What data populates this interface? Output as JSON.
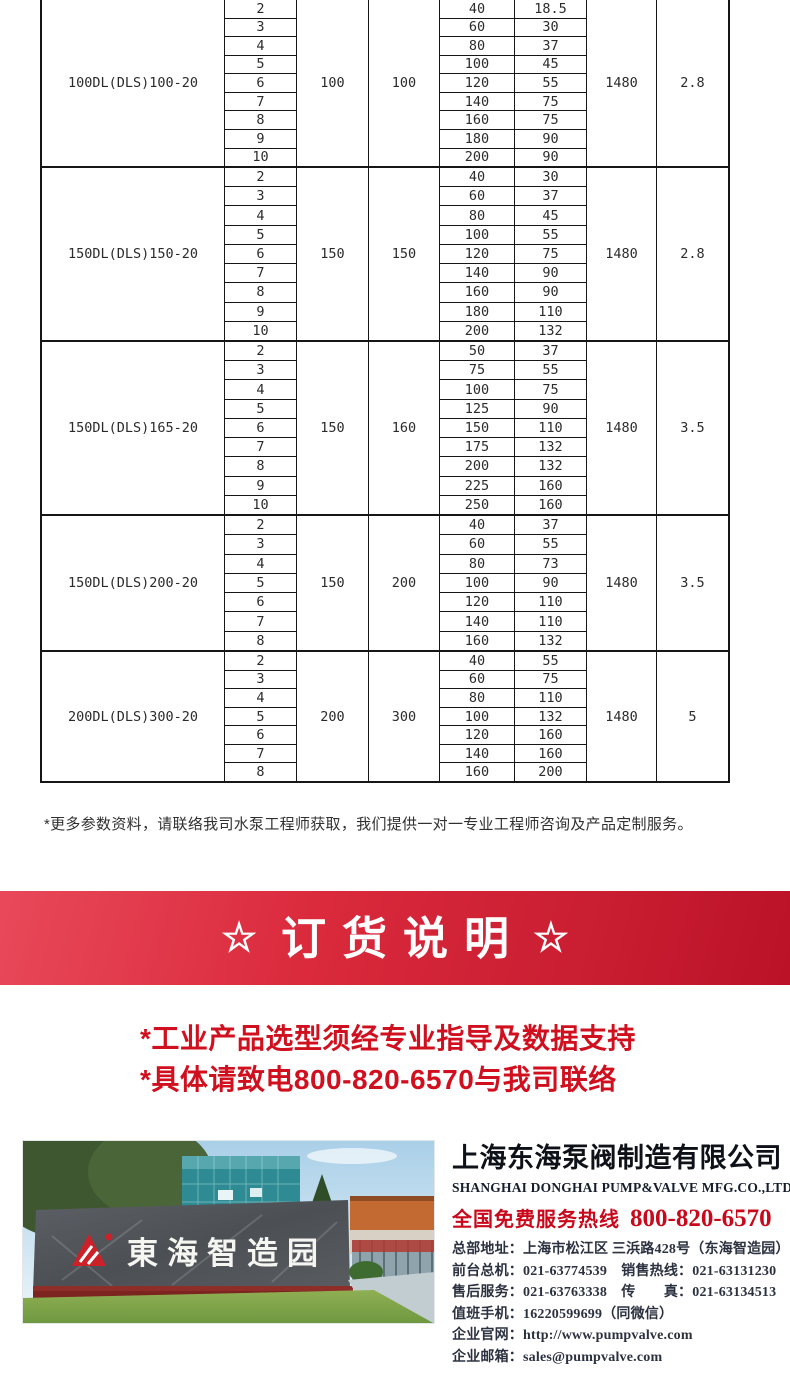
{
  "table": {
    "blocks": [
      {
        "model": "100DL(DLS)100-20",
        "inlet": "100",
        "outlet": "100",
        "speed": "1480",
        "last_value": "2.8",
        "rows": [
          {
            "stage": "2",
            "flow": "40",
            "head": "18.5"
          },
          {
            "stage": "3",
            "flow": "60",
            "head": "30"
          },
          {
            "stage": "4",
            "flow": "80",
            "head": "37"
          },
          {
            "stage": "5",
            "flow": "100",
            "head": "45"
          },
          {
            "stage": "6",
            "flow": "120",
            "head": "55"
          },
          {
            "stage": "7",
            "flow": "140",
            "head": "75"
          },
          {
            "stage": "8",
            "flow": "160",
            "head": "75"
          },
          {
            "stage": "9",
            "flow": "180",
            "head": "90"
          },
          {
            "stage": "10",
            "flow": "200",
            "head": "90"
          }
        ]
      },
      {
        "model": "150DL(DLS)150-20",
        "inlet": "150",
        "outlet": "150",
        "speed": "1480",
        "last_value": "2.8",
        "rows": [
          {
            "stage": "2",
            "flow": "40",
            "head": "30"
          },
          {
            "stage": "3",
            "flow": "60",
            "head": "37"
          },
          {
            "stage": "4",
            "flow": "80",
            "head": "45"
          },
          {
            "stage": "5",
            "flow": "100",
            "head": "55"
          },
          {
            "stage": "6",
            "flow": "120",
            "head": "75"
          },
          {
            "stage": "7",
            "flow": "140",
            "head": "90"
          },
          {
            "stage": "8",
            "flow": "160",
            "head": "90"
          },
          {
            "stage": "9",
            "flow": "180",
            "head": "110"
          },
          {
            "stage": "10",
            "flow": "200",
            "head": "132"
          }
        ]
      },
      {
        "model": "150DL(DLS)165-20",
        "inlet": "150",
        "outlet": "160",
        "speed": "1480",
        "last_value": "3.5",
        "rows": [
          {
            "stage": "2",
            "flow": "50",
            "head": "37"
          },
          {
            "stage": "3",
            "flow": "75",
            "head": "55"
          },
          {
            "stage": "4",
            "flow": "100",
            "head": "75"
          },
          {
            "stage": "5",
            "flow": "125",
            "head": "90"
          },
          {
            "stage": "6",
            "flow": "150",
            "head": "110"
          },
          {
            "stage": "7",
            "flow": "175",
            "head": "132"
          },
          {
            "stage": "8",
            "flow": "200",
            "head": "132"
          },
          {
            "stage": "9",
            "flow": "225",
            "head": "160"
          },
          {
            "stage": "10",
            "flow": "250",
            "head": "160"
          }
        ]
      },
      {
        "model": "150DL(DLS)200-20",
        "inlet": "150",
        "outlet": "200",
        "speed": "1480",
        "last_value": "3.5",
        "rows": [
          {
            "stage": "2",
            "flow": "40",
            "head": "37"
          },
          {
            "stage": "3",
            "flow": "60",
            "head": "55"
          },
          {
            "stage": "4",
            "flow": "80",
            "head": "73"
          },
          {
            "stage": "5",
            "flow": "100",
            "head": "90"
          },
          {
            "stage": "6",
            "flow": "120",
            "head": "110"
          },
          {
            "stage": "7",
            "flow": "140",
            "head": "110"
          },
          {
            "stage": "8",
            "flow": "160",
            "head": "132"
          }
        ]
      },
      {
        "model": "200DL(DLS)300-20",
        "inlet": "200",
        "outlet": "300",
        "speed": "1480",
        "last_value": "5",
        "rows": [
          {
            "stage": "2",
            "flow": "40",
            "head": "55"
          },
          {
            "stage": "3",
            "flow": "60",
            "head": "75"
          },
          {
            "stage": "4",
            "flow": "80",
            "head": "110"
          },
          {
            "stage": "5",
            "flow": "100",
            "head": "132"
          },
          {
            "stage": "6",
            "flow": "120",
            "head": "160"
          },
          {
            "stage": "7",
            "flow": "140",
            "head": "160"
          },
          {
            "stage": "8",
            "flow": "160",
            "head": "200"
          }
        ]
      }
    ]
  },
  "note": "*更多参数资料，请联络我司水泵工程师获取，我们提供一对一专业工程师咨询及产品定制服务。",
  "banner": {
    "star_left": "☆",
    "title": "订货说明",
    "star_right": "☆"
  },
  "notices": [
    "*工业产品选型须经专业指导及数据支持",
    "*具体请致电800-820-6570与我司联络"
  ],
  "footer": {
    "photo_sign": "東海智造园",
    "company_cn": "上海东海泵阀制造有限公司",
    "company_en": "SHANGHAI DONGHAI PUMP&VALVE MFG.CO.,LTD.",
    "hotline_label": "全国免费服务热线",
    "hotline_number": "800-820-6570",
    "contacts": [
      "总部地址：上海市松江区 三浜路428号（东海智造园）",
      "前台总机：021-63774539　销售热线：021-63131230",
      "售后服务：021-63763338　传　　真：021-63134513",
      "值班手机：16220599699（同微信）",
      "企业官网：http://www.pumpvalve.com",
      "企业邮箱：sales@pumpvalve.com"
    ]
  },
  "colors": {
    "banner_red": "#d12234",
    "notice_red": "#d1101f",
    "hotline_red": "#c9081b",
    "table_line": "#161616",
    "logo_red": "#cd2129"
  }
}
